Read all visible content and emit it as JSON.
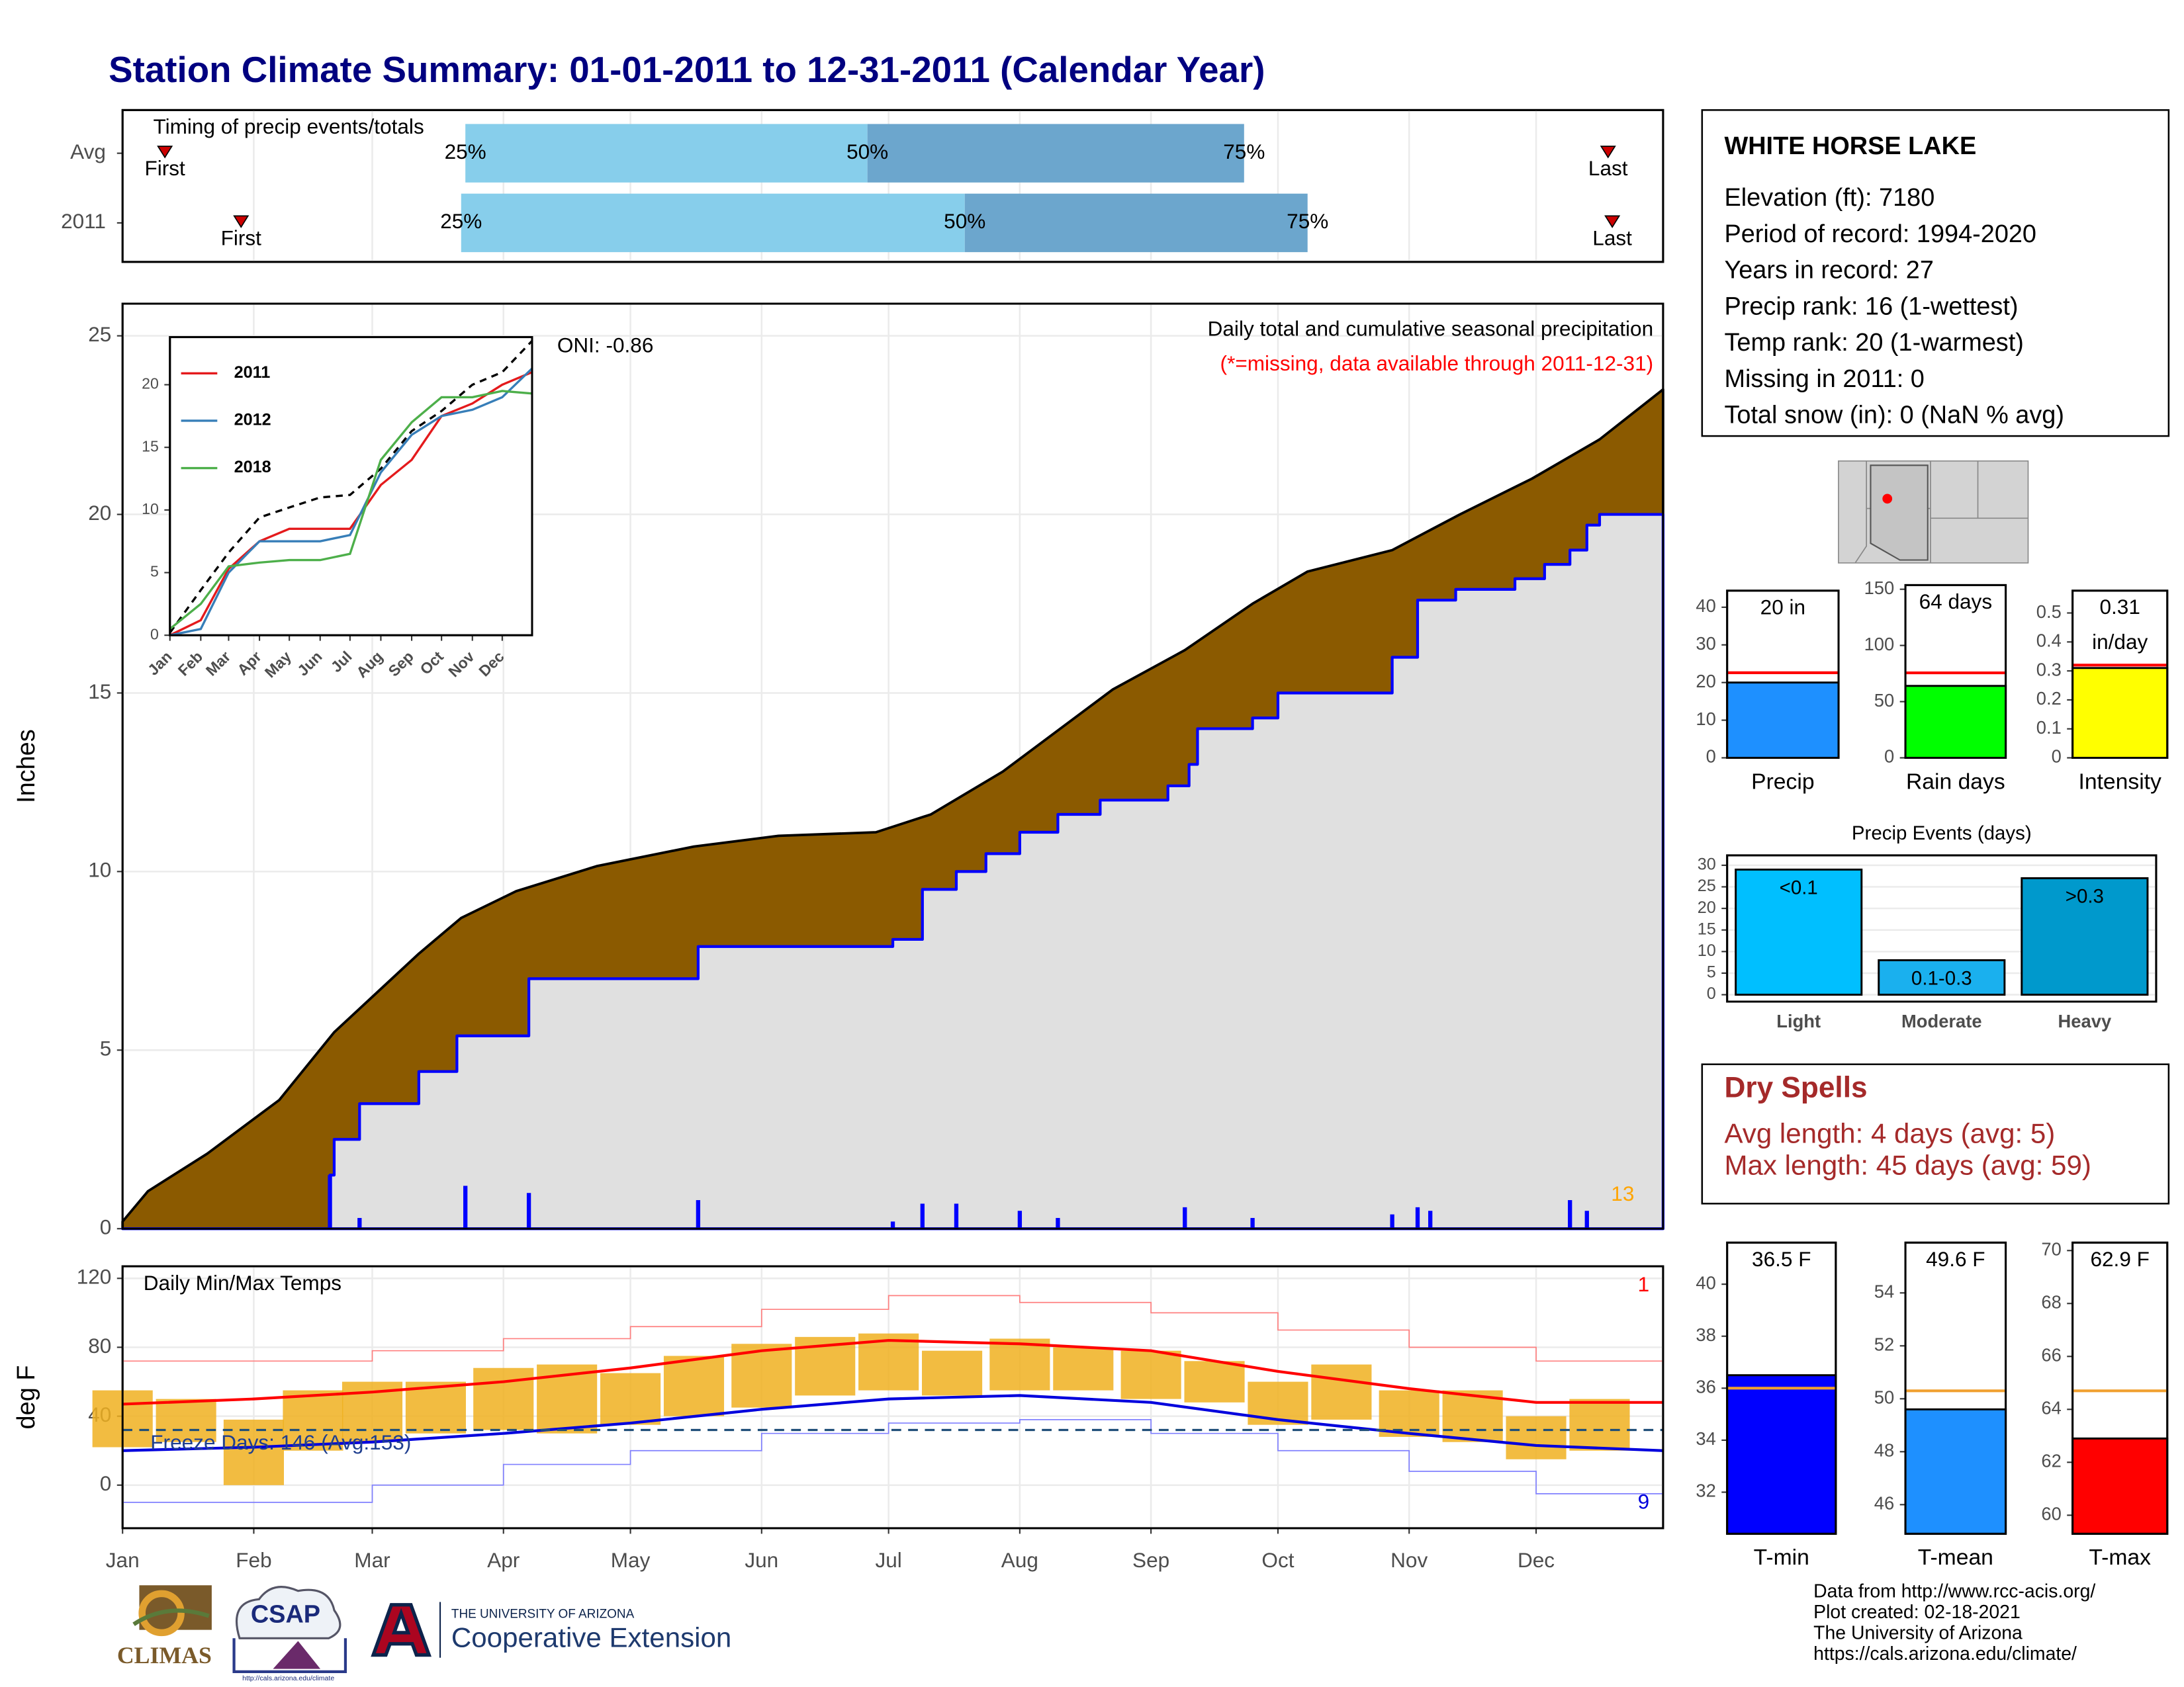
{
  "title": "Station Climate Summary: 01-01-2011 to 12-31-2011 (Calendar Year)",
  "chart_data": [
    {
      "type": "timeline",
      "title": "Timing of precip events/totals",
      "categories": [
        "Avg",
        "2011"
      ],
      "xlim": [
        1,
        365
      ],
      "first": [
        11,
        29
      ],
      "first_label": "First",
      "last": [
        352,
        353
      ],
      "last_label": "Last",
      "quantiles": [
        {
          "label": "25%",
          "values": [
            82,
            81
          ]
        },
        {
          "label": "50%",
          "values": [
            177,
            200
          ]
        },
        {
          "label": "75%",
          "values": [
            266,
            281
          ]
        }
      ],
      "colors": [
        "#87ceeb",
        "#6ca6cd"
      ],
      "marker_color": "#cc0000"
    },
    {
      "type": "area",
      "ylabel": "Inches",
      "xlim": [
        1,
        365
      ],
      "ylim": [
        0,
        25.9
      ],
      "yticks": [
        0,
        5,
        10,
        15,
        20,
        25
      ],
      "grid": true,
      "annotations": [
        "ONI: -0.86",
        "Daily total and cumulative seasonal precipitation",
        "(*=missing, data available through 2011-12-31)",
        "13"
      ],
      "series": [
        {
          "color": "#8b5a00",
          "x": [
            1,
            7,
            21,
            38,
            51,
            61,
            71,
            81,
            94,
            113,
            136,
            156,
            179,
            192,
            209,
            222,
            235,
            252,
            268,
            281,
            301,
            317,
            334,
            350,
            365
          ],
          "values": [
            0.2,
            1.05,
            2.1,
            3.6,
            5.5,
            6.6,
            7.7,
            8.7,
            9.45,
            10.15,
            10.7,
            11.0,
            11.1,
            11.6,
            12.8,
            13.95,
            15.1,
            16.2,
            17.5,
            18.4,
            19.0,
            20.0,
            21.0,
            22.1,
            23.5
          ]
        },
        {
          "color": "#0000ff",
          "fill": "#e0e0e0",
          "x": [
            1,
            50,
            51,
            57,
            71,
            80,
            97,
            137,
            183,
            190,
            198,
            205,
            213,
            222,
            232,
            248,
            253,
            255,
            268,
            274,
            301,
            307,
            316,
            330,
            337,
            343,
            347,
            350,
            365
          ],
          "values": [
            0,
            1.5,
            2.5,
            3.5,
            4.4,
            5.4,
            7.0,
            7.9,
            8.1,
            9.5,
            10.0,
            10.5,
            11.1,
            11.6,
            12.0,
            12.4,
            13.0,
            14.0,
            14.3,
            15.0,
            16.0,
            17.6,
            17.9,
            18.2,
            18.6,
            19.0,
            19.7,
            20.0,
            20.0
          ]
        }
      ],
      "daily": {
        "color": "#0000ff",
        "x": [
          50,
          57,
          82,
          97,
          137,
          183,
          190,
          198,
          213,
          222,
          252,
          268,
          301,
          307,
          310,
          343,
          347
        ],
        "values": [
          1.5,
          0.3,
          1.2,
          1.0,
          0.8,
          0.2,
          0.7,
          0.7,
          0.5,
          0.3,
          0.6,
          0.3,
          0.4,
          0.6,
          0.5,
          0.8,
          0.5
        ]
      }
    },
    {
      "type": "line",
      "xlim": [
        1,
        365
      ],
      "ylim": [
        0,
        23.8
      ],
      "yticks": [
        0,
        5,
        10,
        15,
        20
      ],
      "xticks": [
        {
          "value": 1,
          "label": "Jan"
        },
        {
          "value": 32,
          "label": "Feb"
        },
        {
          "value": 60,
          "label": "Mar"
        },
        {
          "value": 91,
          "label": "Apr"
        },
        {
          "value": 121,
          "label": "May"
        },
        {
          "value": 152,
          "label": "Jun"
        },
        {
          "value": 182,
          "label": "Jul"
        },
        {
          "value": 213,
          "label": "Aug"
        },
        {
          "value": 244,
          "label": "Sep"
        },
        {
          "value": 274,
          "label": "Oct"
        },
        {
          "value": 305,
          "label": "Nov"
        },
        {
          "value": 335,
          "label": "Dec"
        }
      ],
      "x": [
        1,
        32,
        60,
        91,
        121,
        152,
        182,
        213,
        244,
        274,
        305,
        335,
        365
      ],
      "series": [
        {
          "color": "#000000",
          "dashed": true,
          "values": [
            0.2,
            3.6,
            6.6,
            9.4,
            10.2,
            11.0,
            11.2,
            13.3,
            16.3,
            17.9,
            20.0,
            21.0,
            23.5
          ]
        },
        {
          "name": "2011",
          "color": "#e41a1c",
          "values": [
            0,
            1.2,
            5.3,
            7.5,
            8.5,
            8.5,
            8.5,
            12,
            14,
            17.5,
            18.5,
            20,
            21
          ]
        },
        {
          "name": "2012",
          "color": "#377eb8",
          "values": [
            0,
            0.5,
            5.0,
            7.5,
            7.5,
            7.5,
            8,
            13,
            16,
            17.5,
            18,
            19,
            21.3
          ]
        },
        {
          "name": "2018",
          "color": "#4daf4a",
          "values": [
            0.5,
            2.5,
            5.5,
            5.8,
            6,
            6,
            6.5,
            14,
            17,
            19,
            19,
            19.5,
            19.3
          ]
        }
      ]
    },
    {
      "type": "temperature",
      "title": "Daily Min/Max Temps",
      "ylabel": "deg F",
      "xlim": [
        1,
        365
      ],
      "ylim": [
        -25,
        127
      ],
      "yticks": [
        0,
        40,
        80,
        120
      ],
      "grid": true,
      "xticks": [
        {
          "value": 1,
          "label": "Jan"
        },
        {
          "value": 32,
          "label": "Feb"
        },
        {
          "value": 60,
          "label": "Mar"
        },
        {
          "value": 91,
          "label": "Apr"
        },
        {
          "value": 121,
          "label": "May"
        },
        {
          "value": 152,
          "label": "Jun"
        },
        {
          "value": 182,
          "label": "Jul"
        },
        {
          "value": 213,
          "label": "Aug"
        },
        {
          "value": 244,
          "label": "Sep"
        },
        {
          "value": 274,
          "label": "Oct"
        },
        {
          "value": 305,
          "label": "Nov"
        },
        {
          "value": 335,
          "label": "Dec"
        }
      ],
      "x": [
        1,
        32,
        60,
        91,
        121,
        152,
        182,
        213,
        244,
        274,
        305,
        335,
        365
      ],
      "series": [
        {
          "color": "#ff8080",
          "width": 0.8,
          "values": [
            72,
            72,
            78,
            85,
            92,
            102,
            110,
            106,
            100,
            90,
            80,
            72,
            70
          ]
        },
        {
          "color": "#8080ff",
          "width": 0.8,
          "values": [
            -10,
            -10,
            0,
            12,
            20,
            30,
            36,
            38,
            30,
            20,
            8,
            -5,
            -5
          ]
        },
        {
          "color": "#ff0000",
          "width": 2,
          "values": [
            47,
            50,
            54,
            60,
            68,
            78,
            84,
            82,
            78,
            66,
            56,
            48,
            48
          ]
        },
        {
          "color": "#0000dd",
          "width": 2,
          "values": [
            20,
            22,
            25,
            30,
            36,
            44,
            50,
            52,
            48,
            38,
            30,
            23,
            20
          ]
        }
      ],
      "daily": {
        "color": "#f0b020",
        "x": [
          1,
          16,
          32,
          46,
          60,
          75,
          91,
          106,
          121,
          136,
          152,
          167,
          182,
          197,
          213,
          228,
          244,
          259,
          274,
          289,
          305,
          320,
          335,
          350
        ],
        "max": [
          55,
          50,
          38,
          55,
          60,
          60,
          68,
          70,
          65,
          75,
          82,
          86,
          88,
          78,
          85,
          80,
          78,
          72,
          60,
          70,
          55,
          55,
          40,
          50
        ],
        "min": [
          22,
          25,
          0,
          20,
          25,
          30,
          32,
          30,
          35,
          40,
          45,
          52,
          55,
          52,
          55,
          55,
          50,
          48,
          35,
          38,
          28,
          25,
          15,
          20
        ]
      },
      "freeze_line": 32,
      "freeze_label": "Freeze Days: 146 (Avg:153)",
      "annotations": [
        "1",
        "9"
      ]
    },
    {
      "type": "bar",
      "categories": [
        "Precip"
      ],
      "values": [
        20
      ],
      "value_labels": [
        "20 in"
      ],
      "average": 22.6,
      "avg_color": "#ff0000",
      "color": "#1e90ff",
      "ylim": [
        0,
        44.4
      ],
      "yticks": [
        0,
        10,
        20,
        30,
        40
      ]
    },
    {
      "type": "bar",
      "categories": [
        "Rain days"
      ],
      "values": [
        64
      ],
      "value_labels": [
        "64 days"
      ],
      "average": 75.6,
      "avg_color": "#ff0000",
      "color": "#00ff00",
      "ylim": [
        0,
        153.7
      ],
      "yticks": [
        0,
        50,
        100,
        150
      ]
    },
    {
      "type": "bar",
      "categories": [
        "Intensity"
      ],
      "values": [
        0.31
      ],
      "value_labels": [
        "0.31 in/day"
      ],
      "average": 0.32,
      "avg_color": "#ff0000",
      "color": "#ffff00",
      "ylim": [
        0,
        0.577
      ],
      "yticks": [
        0,
        0.1,
        0.2,
        0.3,
        0.4,
        0.5
      ]
    },
    {
      "type": "bar",
      "title": "Precip Events (days)",
      "categories": [
        "Light",
        "Moderate",
        "Heavy"
      ],
      "values": [
        29,
        8,
        27
      ],
      "bin_labels": [
        "<0.1",
        "0.1-0.3",
        ">0.3"
      ],
      "colors": [
        "#00bfff",
        "#1ab0ee",
        "#0099cc"
      ],
      "ylim": [
        -1.6,
        32.3
      ],
      "yticks": [
        0,
        5,
        10,
        15,
        20,
        25,
        30
      ],
      "grid": true
    },
    {
      "type": "bar",
      "categories": [
        "T-min"
      ],
      "values": [
        36.5
      ],
      "value_labels": [
        "36.5 F"
      ],
      "average": 36,
      "avg_color": "#f0a030",
      "color": "#0000ff",
      "ylim": [
        30.4,
        41.6
      ],
      "yticks": [
        32,
        34,
        36,
        38,
        40
      ]
    },
    {
      "type": "bar",
      "categories": [
        "T-mean"
      ],
      "values": [
        49.6
      ],
      "value_labels": [
        "49.6 F"
      ],
      "average": 50.3,
      "avg_color": "#f0a030",
      "color": "#1e90ff",
      "ylim": [
        44.9,
        55.9
      ],
      "yticks": [
        46,
        48,
        50,
        52,
        54
      ]
    },
    {
      "type": "bar",
      "categories": [
        "T-max"
      ],
      "values": [
        62.9
      ],
      "value_labels": [
        "62.9 F"
      ],
      "average": 64.7,
      "avg_color": "#f0a030",
      "color": "#ff0000",
      "ylim": [
        59.3,
        70.3
      ],
      "yticks": [
        60,
        62,
        64,
        66,
        68,
        70
      ]
    }
  ],
  "station": {
    "name": "WHITE HORSE LAKE",
    "lines": [
      "Elevation (ft): 7180",
      "Period of record: 1994-2020",
      "Years in record: 27",
      "Precip rank: 16 (1-wettest)",
      "Temp rank: 20 (1-warmest)",
      "Missing in 2011: 0",
      "Total snow (in): 0 (NaN % avg)"
    ]
  },
  "dry_spells": {
    "title": "Dry Spells",
    "lines": [
      "Avg length: 4 days (avg: 5)",
      "Max length: 45 days (avg: 59)"
    ]
  },
  "footer": [
    "Data from http://www.rcc-acis.org/",
    "Plot created: 02-18-2021",
    "The University of Arizona",
    "https://cals.arizona.edu/climate/"
  ],
  "logos": {
    "climas": "CLIMAS",
    "csap": "CSAP",
    "csap_url": "http://cals.arizona.edu/climate",
    "university": "THE UNIVERSITY OF ARIZONA",
    "extension": "Cooperative Extension"
  }
}
